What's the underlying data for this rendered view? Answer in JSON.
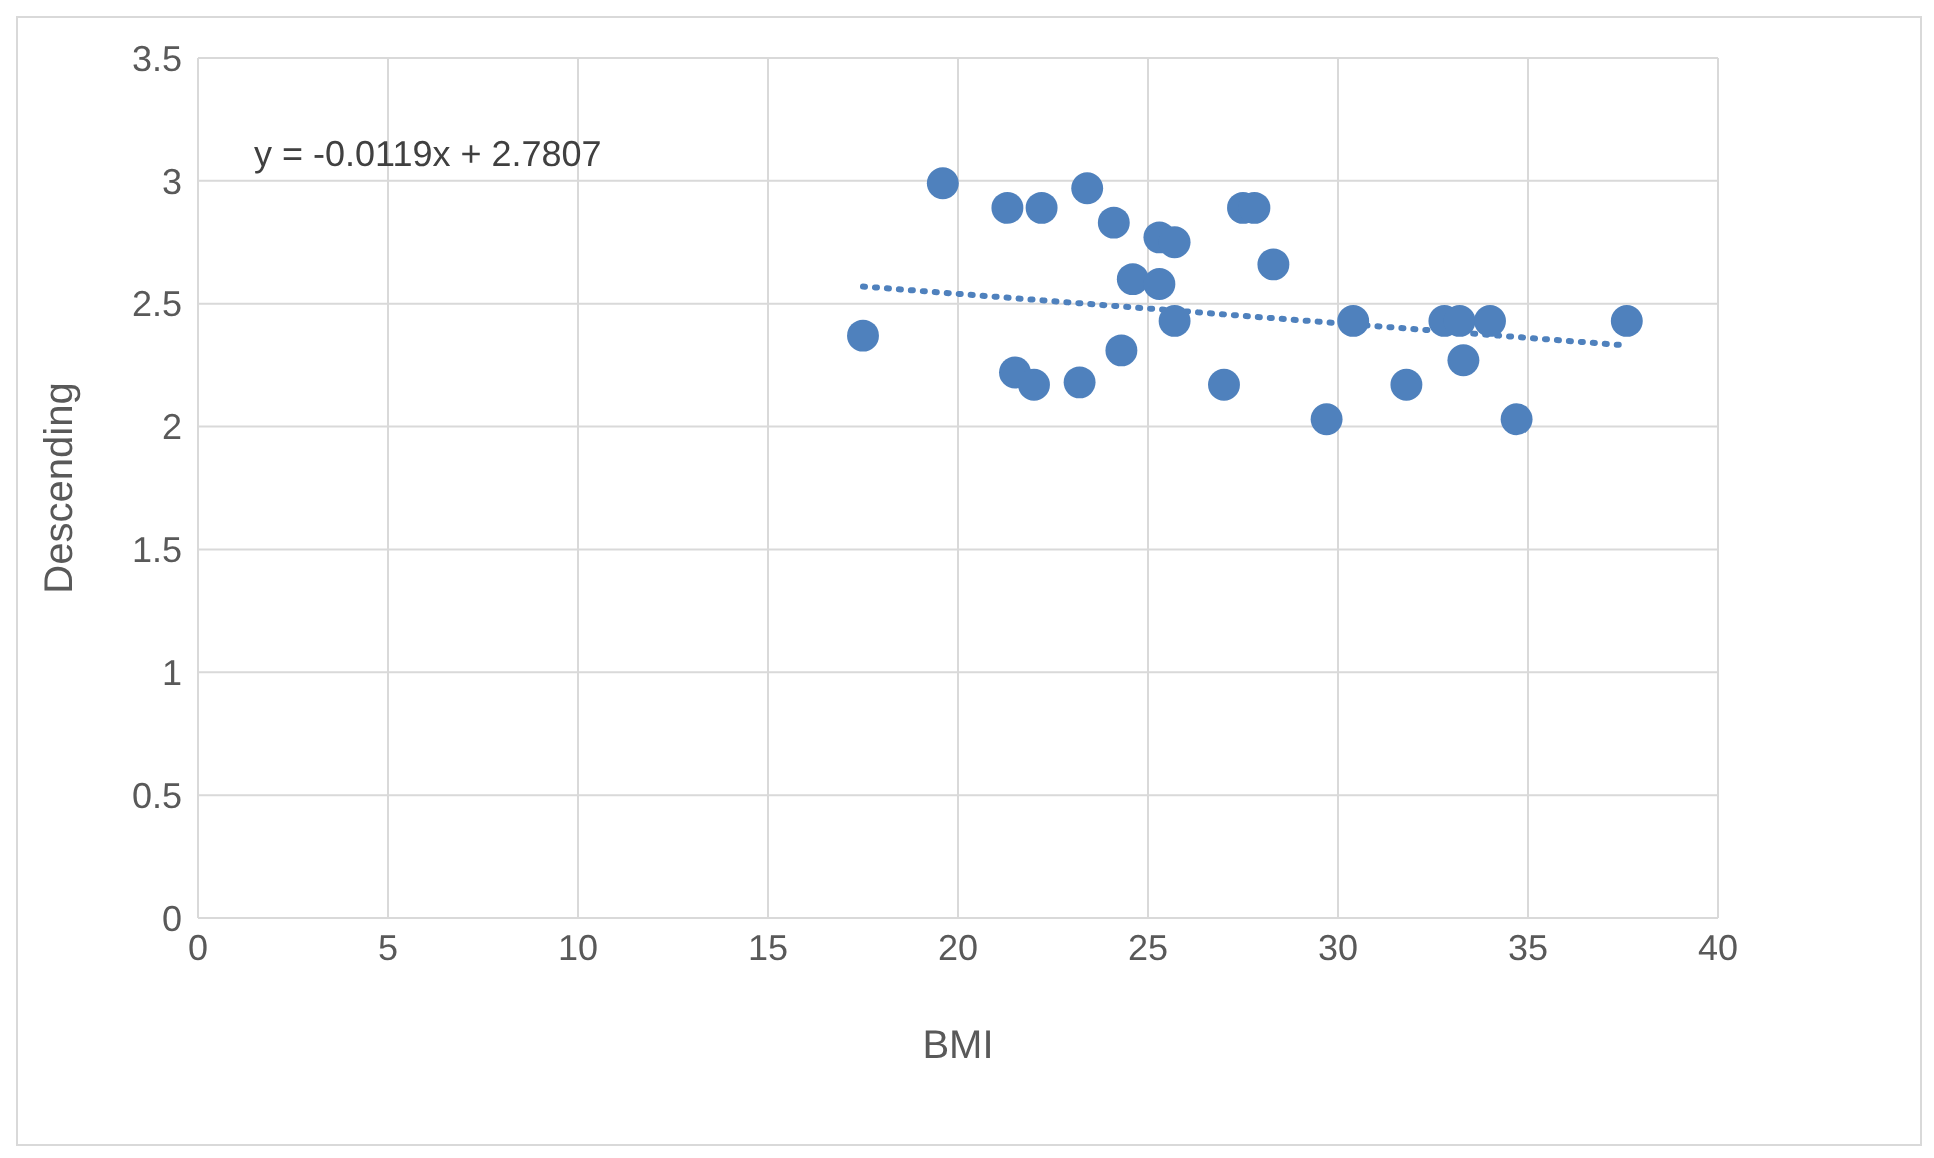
{
  "chart_data": {
    "type": "scatter",
    "xlabel": "BMI",
    "ylabel": "Descending",
    "xlim": [
      0,
      40
    ],
    "ylim": [
      0,
      3.5
    ],
    "xticks": [
      0,
      5,
      10,
      15,
      20,
      25,
      30,
      35,
      40
    ],
    "yticks": [
      0,
      0.5,
      1,
      1.5,
      2,
      2.5,
      3,
      3.5
    ],
    "grid": true,
    "marker": "circle",
    "annotations": [
      "y = -0.0119x + 2.7807"
    ],
    "series": [
      {
        "color": "#4f81bd",
        "x": [
          17.5,
          19.6,
          21.3,
          22.2,
          23.4,
          24.1,
          24.6,
          25.3,
          25.3,
          25.7,
          25.7,
          21.5,
          22.0,
          23.2,
          24.3,
          27.0,
          27.5,
          27.8,
          28.3,
          29.7,
          30.4,
          31.8,
          32.8,
          33.2,
          33.3,
          34.0,
          34.7,
          37.6
        ],
        "values": [
          2.37,
          2.99,
          2.89,
          2.89,
          2.97,
          2.83,
          2.6,
          2.58,
          2.77,
          2.75,
          2.43,
          2.22,
          2.17,
          2.18,
          2.31,
          2.17,
          2.89,
          2.89,
          2.66,
          2.03,
          2.43,
          2.17,
          2.43,
          2.43,
          2.27,
          2.43,
          2.03,
          2.43
        ]
      },
      {
        "type": "line",
        "color": "#4f81bd",
        "line_style": "dotted",
        "marker": "none",
        "x": [
          17.5,
          37.6
        ],
        "values": [
          2.57,
          2.33
        ]
      }
    ]
  }
}
